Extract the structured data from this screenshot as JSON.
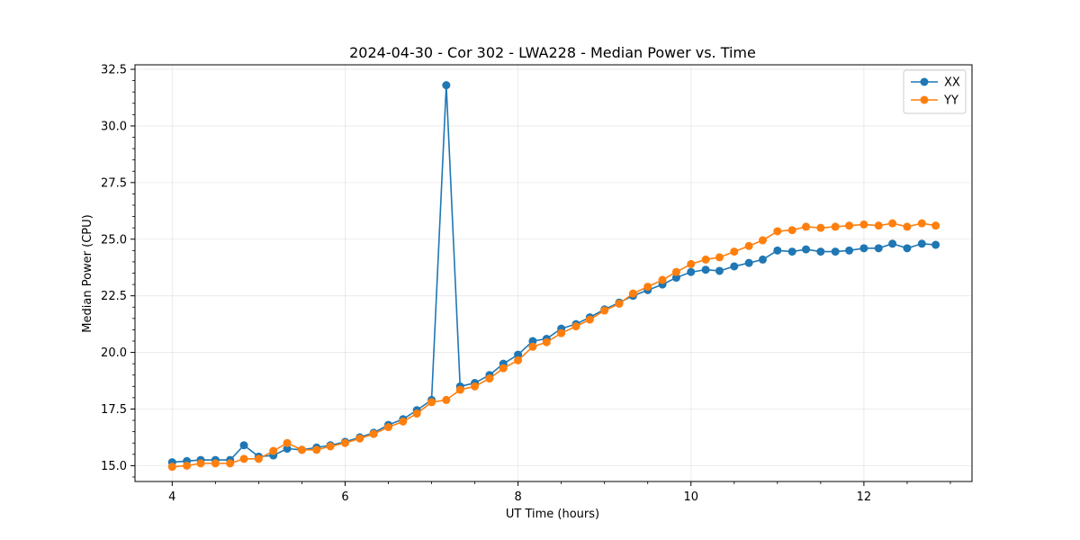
{
  "chart_data": {
    "type": "line",
    "title": "2024-04-30 - Cor 302 - LWA228 - Median Power vs. Time",
    "xlabel": "UT Time (hours)",
    "ylabel": "Median Power (CPU)",
    "xlim": [
      3.57,
      13.25
    ],
    "ylim": [
      14.3,
      32.7
    ],
    "xticks": [
      4,
      6,
      8,
      10,
      12
    ],
    "xtick_labels": [
      "4",
      "6",
      "8",
      "10",
      "12"
    ],
    "yticks": [
      15.0,
      17.5,
      20.0,
      22.5,
      25.0,
      27.5,
      30.0,
      32.5
    ],
    "ytick_labels": [
      "15.0",
      "17.5",
      "20.0",
      "22.5",
      "25.0",
      "27.5",
      "30.0",
      "32.5"
    ],
    "grid": true,
    "legend_position": "top-right",
    "x": [
      4.0,
      4.17,
      4.33,
      4.5,
      4.67,
      4.83,
      5.0,
      5.17,
      5.33,
      5.5,
      5.67,
      5.83,
      6.0,
      6.17,
      6.33,
      6.5,
      6.67,
      6.83,
      7.0,
      7.17,
      7.33,
      7.5,
      7.67,
      7.83,
      8.0,
      8.17,
      8.33,
      8.5,
      8.67,
      8.83,
      9.0,
      9.17,
      9.33,
      9.5,
      9.67,
      9.83,
      10.0,
      10.17,
      10.33,
      10.5,
      10.67,
      10.83,
      11.0,
      11.17,
      11.33,
      11.5,
      11.67,
      11.83,
      12.0,
      12.17,
      12.33,
      12.5,
      12.67,
      12.83
    ],
    "series": [
      {
        "name": "XX",
        "color": "#1f77b4",
        "values": [
          15.15,
          15.2,
          15.25,
          15.25,
          15.25,
          15.9,
          15.4,
          15.45,
          15.75,
          15.7,
          15.8,
          15.9,
          16.05,
          16.25,
          16.45,
          16.8,
          17.05,
          17.45,
          17.9,
          31.8,
          18.5,
          18.65,
          19.0,
          19.5,
          19.9,
          20.5,
          20.6,
          21.05,
          21.25,
          21.55,
          21.9,
          22.2,
          22.5,
          22.75,
          23.0,
          23.3,
          23.55,
          23.65,
          23.6,
          23.8,
          23.95,
          24.1,
          24.5,
          24.45,
          24.55,
          24.45,
          24.45,
          24.5,
          24.6,
          24.6,
          24.8,
          24.6,
          24.8,
          24.75
        ]
      },
      {
        "name": "YY",
        "color": "#ff7f0e",
        "values": [
          14.95,
          15.0,
          15.1,
          15.1,
          15.1,
          15.3,
          15.3,
          15.65,
          16.0,
          15.7,
          15.7,
          15.85,
          16.0,
          16.2,
          16.4,
          16.7,
          16.95,
          17.3,
          17.8,
          17.9,
          18.35,
          18.5,
          18.85,
          19.3,
          19.65,
          20.25,
          20.45,
          20.85,
          21.15,
          21.45,
          21.85,
          22.15,
          22.6,
          22.9,
          23.2,
          23.55,
          23.9,
          24.1,
          24.2,
          24.45,
          24.7,
          24.95,
          25.35,
          25.4,
          25.55,
          25.5,
          25.55,
          25.6,
          25.65,
          25.6,
          25.7,
          25.55,
          25.7,
          25.6
        ]
      }
    ]
  }
}
